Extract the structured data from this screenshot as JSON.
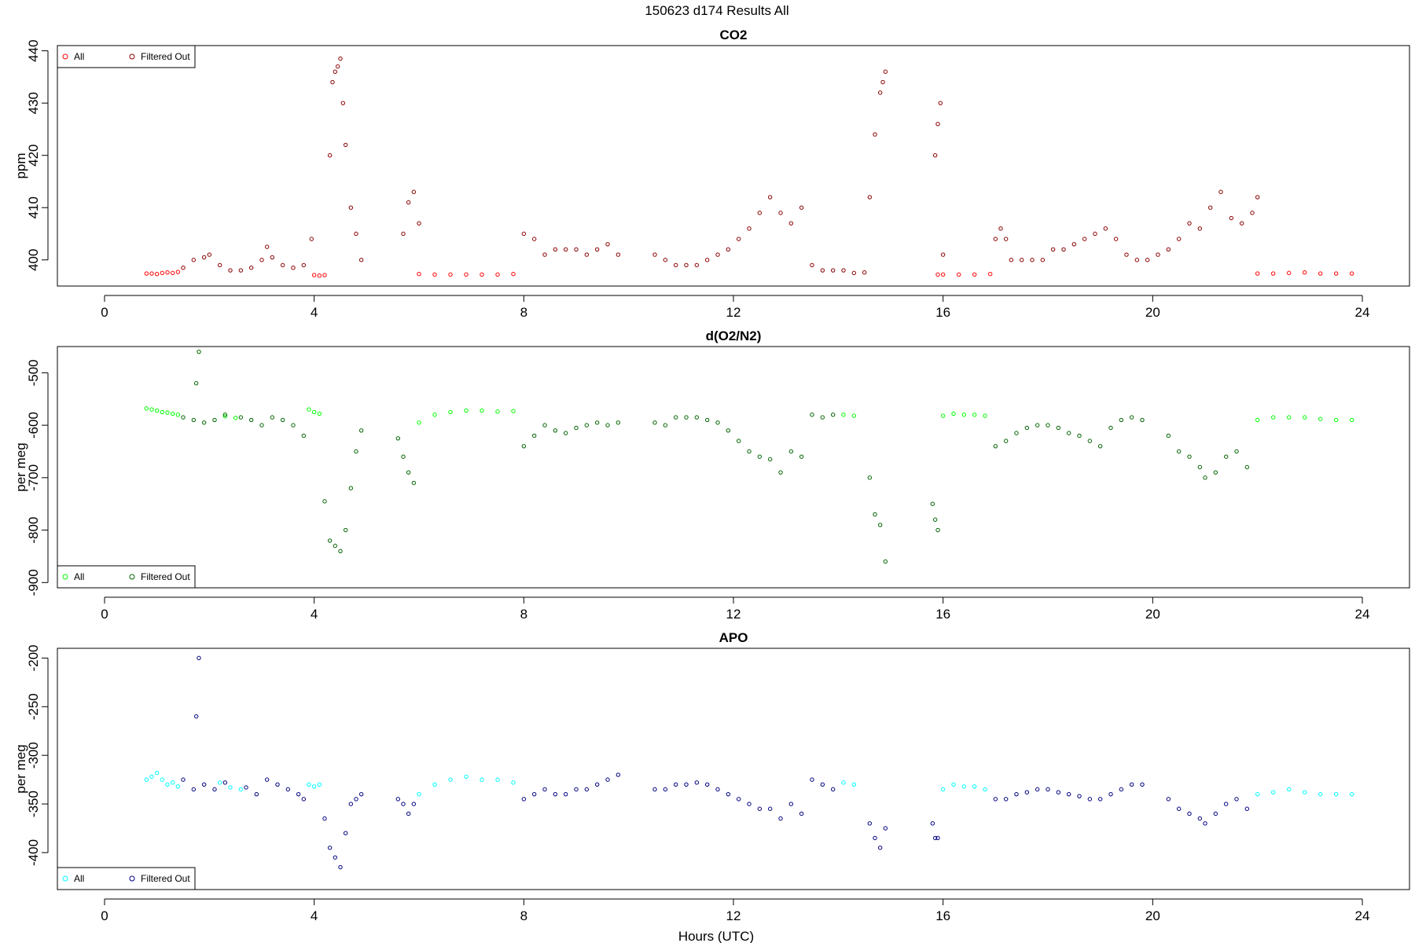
{
  "figure": {
    "suptitle": "150623   d174   Results All",
    "xlabel": "Hours (UTC)"
  },
  "chart_data": [
    {
      "type": "scatter",
      "title": "CO2",
      "xlabel": "Hours (UTC)",
      "ylabel": "ppm",
      "xlim": [
        -0.9,
        24.9
      ],
      "ylim": [
        395,
        441
      ],
      "xticks": [
        0,
        4,
        8,
        12,
        16,
        20,
        24
      ],
      "yticks": [
        400,
        410,
        420,
        430,
        440
      ],
      "grid": false,
      "legend": {
        "placement": "top-left",
        "entries": [
          {
            "name": "All",
            "color": "#ff0000"
          },
          {
            "name": "Filtered Out",
            "color": "#8b0000"
          }
        ]
      },
      "series": [
        {
          "name": "All",
          "color": "#ff0000",
          "x": [
            0.8,
            0.9,
            1.0,
            1.1,
            1.2,
            1.3,
            1.4,
            4.0,
            4.1,
            4.2,
            6.0,
            6.3,
            6.6,
            6.9,
            7.2,
            7.5,
            7.8,
            15.9,
            16.0,
            16.3,
            16.6,
            16.9,
            22.0,
            22.3,
            22.6,
            22.9,
            23.2,
            23.5,
            23.8
          ],
          "y": [
            397.4,
            397.4,
            397.3,
            397.5,
            397.6,
            397.5,
            397.7,
            397.1,
            397.0,
            397.1,
            397.3,
            397.2,
            397.2,
            397.2,
            397.2,
            397.2,
            397.3,
            397.2,
            397.2,
            397.2,
            397.2,
            397.3,
            397.4,
            397.4,
            397.5,
            397.6,
            397.4,
            397.4,
            397.4
          ]
        },
        {
          "name": "Filtered Out",
          "color": "#8b0000",
          "x": [
            1.5,
            1.7,
            1.9,
            2.0,
            2.2,
            2.4,
            2.6,
            2.8,
            3.0,
            3.1,
            3.2,
            3.4,
            3.6,
            3.8,
            3.95,
            4.3,
            4.35,
            4.4,
            4.45,
            4.5,
            4.55,
            4.6,
            4.7,
            4.8,
            4.9,
            5.7,
            5.8,
            5.9,
            6.0,
            8.0,
            8.2,
            8.4,
            8.6,
            8.8,
            9.0,
            9.2,
            9.4,
            9.6,
            9.8,
            10.5,
            10.7,
            10.9,
            11.1,
            11.3,
            11.5,
            11.7,
            11.9,
            12.1,
            12.3,
            12.5,
            12.7,
            12.9,
            13.1,
            13.3,
            13.5,
            13.7,
            13.9,
            14.1,
            14.3,
            14.5,
            14.6,
            14.7,
            14.8,
            14.85,
            14.9,
            15.85,
            15.9,
            15.95,
            16.0,
            17.0,
            17.1,
            17.2,
            17.3,
            17.5,
            17.7,
            17.9,
            18.1,
            18.3,
            18.5,
            18.7,
            18.9,
            19.1,
            19.3,
            19.5,
            19.7,
            19.9,
            20.1,
            20.3,
            20.5,
            20.7,
            20.9,
            21.1,
            21.3,
            21.5,
            21.7,
            21.9,
            22.0
          ],
          "y": [
            398.5,
            400.0,
            400.5,
            401.0,
            399.0,
            398.0,
            398.0,
            398.5,
            400.0,
            402.5,
            400.5,
            399.0,
            398.5,
            399.0,
            404.0,
            420.0,
            434.0,
            436.0,
            437.0,
            438.5,
            430.0,
            422.0,
            410.0,
            405.0,
            400.0,
            405.0,
            411.0,
            413.0,
            407.0,
            405.0,
            404.0,
            401.0,
            402.0,
            402.0,
            402.0,
            401.0,
            402.0,
            403.0,
            401.0,
            401.0,
            400.0,
            399.0,
            399.0,
            399.0,
            400.0,
            401.0,
            402.0,
            404.0,
            406.0,
            409.0,
            412.0,
            409.0,
            407.0,
            410.0,
            399.0,
            398.0,
            398.0,
            398.0,
            397.5,
            397.6,
            412.0,
            424.0,
            432.0,
            434.0,
            436.0,
            420.0,
            426.0,
            430.0,
            401.0,
            404.0,
            406.0,
            404.0,
            400.0,
            400.0,
            400.0,
            400.0,
            402.0,
            402.0,
            403.0,
            404.0,
            405.0,
            406.0,
            404.0,
            401.0,
            400.0,
            400.0,
            401.0,
            402.0,
            404.0,
            407.0,
            406.0,
            410.0,
            413.0,
            408.0,
            407.0,
            409.0,
            412.0
          ]
        }
      ]
    },
    {
      "type": "scatter",
      "title": "d(O2/N2)",
      "xlabel": "Hours (UTC)",
      "ylabel": "per meg",
      "xlim": [
        -0.9,
        24.9
      ],
      "ylim": [
        -910,
        -450
      ],
      "xticks": [
        0,
        4,
        8,
        12,
        16,
        20,
        24
      ],
      "yticks": [
        -500,
        -600,
        -700,
        -800,
        -900
      ],
      "grid": false,
      "legend": {
        "placement": "bottom-left",
        "entries": [
          {
            "name": "All",
            "color": "#00ff00"
          },
          {
            "name": "Filtered Out",
            "color": "#006400"
          }
        ]
      },
      "series": [
        {
          "name": "All",
          "color": "#00ff00",
          "x": [
            0.8,
            0.9,
            1.0,
            1.1,
            1.2,
            1.3,
            1.4,
            2.3,
            2.5,
            3.9,
            4.0,
            4.1,
            6.0,
            6.3,
            6.6,
            6.9,
            7.2,
            7.5,
            7.8,
            14.1,
            14.3,
            16.0,
            16.2,
            16.4,
            16.6,
            16.8,
            22.0,
            22.3,
            22.6,
            22.9,
            23.2,
            23.5,
            23.8
          ],
          "y": [
            -568,
            -570,
            -572,
            -575,
            -576,
            -578,
            -580,
            -583,
            -586,
            -570,
            -575,
            -578,
            -595,
            -580,
            -575,
            -572,
            -572,
            -574,
            -573,
            -580,
            -582,
            -582,
            -578,
            -580,
            -580,
            -582,
            -590,
            -585,
            -585,
            -585,
            -588,
            -590,
            -590
          ]
        },
        {
          "name": "Filtered Out",
          "color": "#006400",
          "x": [
            1.5,
            1.7,
            1.75,
            1.8,
            1.9,
            2.1,
            2.3,
            2.6,
            2.8,
            3.0,
            3.2,
            3.4,
            3.6,
            3.8,
            4.2,
            4.3,
            4.4,
            4.5,
            4.6,
            4.7,
            4.8,
            4.9,
            5.6,
            5.7,
            5.8,
            5.9,
            8.0,
            8.2,
            8.4,
            8.6,
            8.8,
            9.0,
            9.2,
            9.4,
            9.6,
            9.8,
            10.5,
            10.7,
            10.9,
            11.1,
            11.3,
            11.5,
            11.7,
            11.9,
            12.1,
            12.3,
            12.5,
            12.7,
            12.9,
            13.1,
            13.3,
            13.5,
            13.7,
            13.9,
            14.6,
            14.7,
            14.8,
            14.9,
            15.8,
            15.85,
            15.9,
            17.0,
            17.2,
            17.4,
            17.6,
            17.8,
            18.0,
            18.2,
            18.4,
            18.6,
            18.8,
            19.0,
            19.2,
            19.4,
            19.6,
            19.8,
            20.3,
            20.5,
            20.7,
            20.9,
            21.0,
            21.2,
            21.4,
            21.6,
            21.8
          ],
          "y": [
            -585,
            -590,
            -520,
            -460,
            -595,
            -590,
            -580,
            -585,
            -590,
            -600,
            -585,
            -590,
            -600,
            -620,
            -745,
            -820,
            -830,
            -840,
            -800,
            -720,
            -650,
            -610,
            -625,
            -660,
            -690,
            -710,
            -640,
            -620,
            -600,
            -610,
            -615,
            -605,
            -600,
            -595,
            -600,
            -595,
            -595,
            -600,
            -585,
            -585,
            -585,
            -590,
            -595,
            -610,
            -630,
            -650,
            -660,
            -665,
            -690,
            -650,
            -660,
            -580,
            -585,
            -580,
            -700,
            -770,
            -790,
            -860,
            -750,
            -780,
            -800,
            -640,
            -630,
            -615,
            -605,
            -600,
            -600,
            -605,
            -615,
            -620,
            -630,
            -640,
            -605,
            -590,
            -585,
            -590,
            -620,
            -650,
            -660,
            -680,
            -700,
            -690,
            -660,
            -650,
            -680
          ]
        }
      ]
    },
    {
      "type": "scatter",
      "title": "APO",
      "xlabel": "Hours (UTC)",
      "ylabel": "per meg",
      "xlim": [
        -0.9,
        24.9
      ],
      "ylim": [
        -438,
        -190
      ],
      "xticks": [
        0,
        4,
        8,
        12,
        16,
        20,
        24
      ],
      "yticks": [
        -200,
        -250,
        -300,
        -350,
        -400
      ],
      "grid": false,
      "legend": {
        "placement": "bottom-left",
        "entries": [
          {
            "name": "All",
            "color": "#00ffff"
          },
          {
            "name": "Filtered Out",
            "color": "#000080"
          }
        ]
      },
      "series": [
        {
          "name": "All",
          "color": "#00ffff",
          "x": [
            0.8,
            0.9,
            1.0,
            1.1,
            1.2,
            1.3,
            1.4,
            2.2,
            2.4,
            2.6,
            3.9,
            4.0,
            4.1,
            6.0,
            6.3,
            6.6,
            6.9,
            7.2,
            7.5,
            7.8,
            14.1,
            14.3,
            16.0,
            16.2,
            16.4,
            16.6,
            16.8,
            22.0,
            22.3,
            22.6,
            22.9,
            23.2,
            23.5,
            23.8
          ],
          "y": [
            -325,
            -322,
            -318,
            -325,
            -330,
            -328,
            -332,
            -328,
            -333,
            -335,
            -330,
            -332,
            -330,
            -340,
            -330,
            -325,
            -322,
            -325,
            -325,
            -328,
            -328,
            -330,
            -335,
            -330,
            -332,
            -332,
            -335,
            -340,
            -338,
            -335,
            -338,
            -340,
            -340,
            -340
          ]
        },
        {
          "name": "Filtered Out",
          "color": "#000080",
          "x": [
            1.5,
            1.7,
            1.75,
            1.8,
            1.9,
            2.1,
            2.3,
            2.7,
            2.9,
            3.1,
            3.3,
            3.5,
            3.7,
            3.8,
            4.2,
            4.3,
            4.4,
            4.5,
            4.6,
            4.7,
            4.8,
            4.9,
            5.6,
            5.7,
            5.8,
            5.9,
            8.0,
            8.2,
            8.4,
            8.6,
            8.8,
            9.0,
            9.2,
            9.4,
            9.6,
            9.8,
            10.5,
            10.7,
            10.9,
            11.1,
            11.3,
            11.5,
            11.7,
            11.9,
            12.1,
            12.3,
            12.5,
            12.7,
            12.9,
            13.1,
            13.3,
            13.5,
            13.7,
            13.9,
            14.6,
            14.7,
            14.8,
            14.9,
            15.8,
            15.85,
            15.9,
            17.0,
            17.2,
            17.4,
            17.6,
            17.8,
            18.0,
            18.2,
            18.4,
            18.6,
            18.8,
            19.0,
            19.2,
            19.4,
            19.6,
            19.8,
            20.3,
            20.5,
            20.7,
            20.9,
            21.0,
            21.2,
            21.4,
            21.6,
            21.8
          ],
          "y": [
            -325,
            -335,
            -260,
            -200,
            -330,
            -335,
            -328,
            -333,
            -340,
            -325,
            -330,
            -335,
            -340,
            -345,
            -365,
            -395,
            -405,
            -415,
            -380,
            -350,
            -345,
            -340,
            -345,
            -350,
            -360,
            -350,
            -345,
            -340,
            -335,
            -340,
            -340,
            -335,
            -335,
            -330,
            -325,
            -320,
            -335,
            -335,
            -330,
            -330,
            -328,
            -330,
            -335,
            -340,
            -345,
            -350,
            -355,
            -355,
            -365,
            -350,
            -360,
            -325,
            -330,
            -335,
            -370,
            -385,
            -395,
            -375,
            -370,
            -385,
            -385,
            -345,
            -345,
            -340,
            -338,
            -335,
            -335,
            -338,
            -340,
            -342,
            -345,
            -345,
            -340,
            -335,
            -330,
            -330,
            -345,
            -355,
            -360,
            -365,
            -370,
            -360,
            -350,
            -345,
            -355
          ]
        }
      ]
    }
  ]
}
